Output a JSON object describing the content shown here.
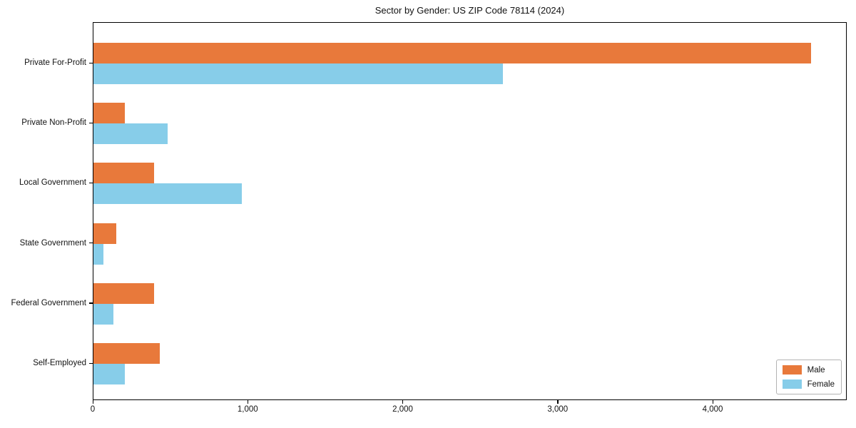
{
  "chart_data": {
    "type": "bar",
    "orientation": "horizontal",
    "title": "Sector by Gender: US ZIP Code 78114 (2024)",
    "categories": [
      "Private For-Profit",
      "Private Non-Profit",
      "Local Government",
      "State Government",
      "Federal Government",
      "Self-Employed"
    ],
    "series": [
      {
        "name": "Male",
        "color": "#e8793b",
        "values": [
          4630,
          200,
          390,
          145,
          390,
          430
        ]
      },
      {
        "name": "Female",
        "color": "#87cde9",
        "values": [
          2640,
          480,
          955,
          65,
          130,
          200
        ]
      }
    ],
    "xlabel": "",
    "ylabel": "",
    "xlim": [
      0,
      4865
    ],
    "x_ticks": [
      0,
      1000,
      2000,
      3000,
      4000
    ],
    "x_tick_labels": [
      "0",
      "1,000",
      "2,000",
      "3,000",
      "4,000"
    ],
    "legend": {
      "position": "lower right"
    },
    "grid": false,
    "axis_color": "#000000",
    "background_color": "#ffffff"
  }
}
